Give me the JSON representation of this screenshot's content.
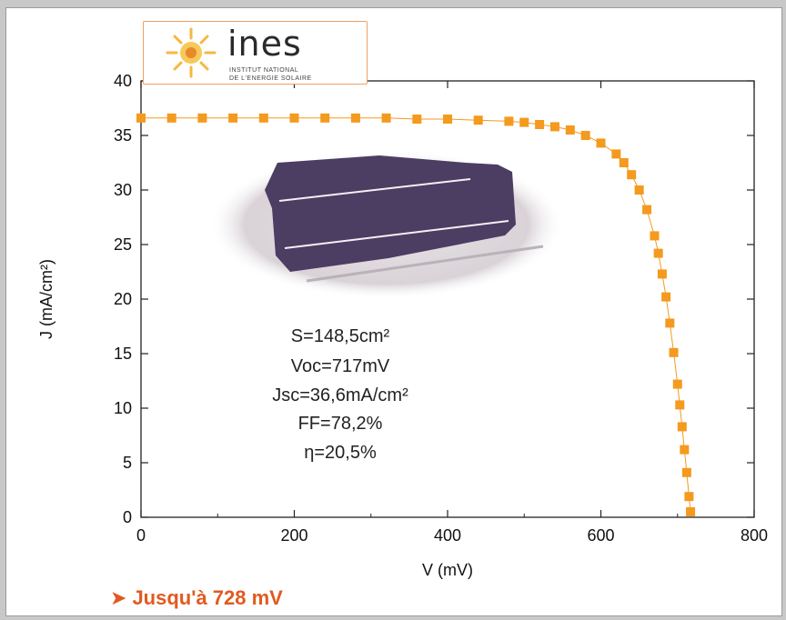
{
  "logo": {
    "brand": "ines",
    "line1": "INSTITUT NATIONAL",
    "line2": "DE L'ENERGIE SOLAIRE"
  },
  "stats": {
    "area": "S=148,5cm²",
    "voc": "Voc=717mV",
    "jsc": "Jsc=36,6mA/cm²",
    "ff": "FF=78,2%",
    "eta": "η=20,5%"
  },
  "caption": {
    "arrow": "➤",
    "text": "Jusqu'à 728 mV"
  },
  "chart_data": {
    "type": "scatter",
    "xlabel": "V (mV)",
    "ylabel": "J (mA/cm²)",
    "xlim": [
      0,
      800
    ],
    "ylim": [
      0,
      40
    ],
    "xticks": [
      0,
      200,
      400,
      600,
      800
    ],
    "yticks": [
      0,
      5,
      10,
      15,
      20,
      25,
      30,
      35,
      40
    ],
    "grid": false,
    "marker_color": "#f39a1f",
    "series": [
      {
        "x": [
          0,
          40,
          80,
          120,
          160,
          200,
          240,
          280,
          320,
          360,
          400,
          440,
          480,
          500,
          520,
          540,
          560,
          580,
          600,
          620,
          630,
          640,
          650,
          660,
          670,
          675,
          680,
          685,
          690,
          695,
          700,
          703,
          706,
          709,
          712,
          715,
          717
        ],
        "y": [
          36.6,
          36.6,
          36.6,
          36.6,
          36.6,
          36.6,
          36.6,
          36.6,
          36.6,
          36.5,
          36.5,
          36.4,
          36.3,
          36.2,
          36.0,
          35.8,
          35.5,
          35.0,
          34.3,
          33.3,
          32.5,
          31.4,
          30.0,
          28.2,
          25.8,
          24.2,
          22.3,
          20.2,
          17.8,
          15.1,
          12.2,
          10.3,
          8.3,
          6.2,
          4.1,
          1.9,
          0.5
        ]
      }
    ]
  }
}
